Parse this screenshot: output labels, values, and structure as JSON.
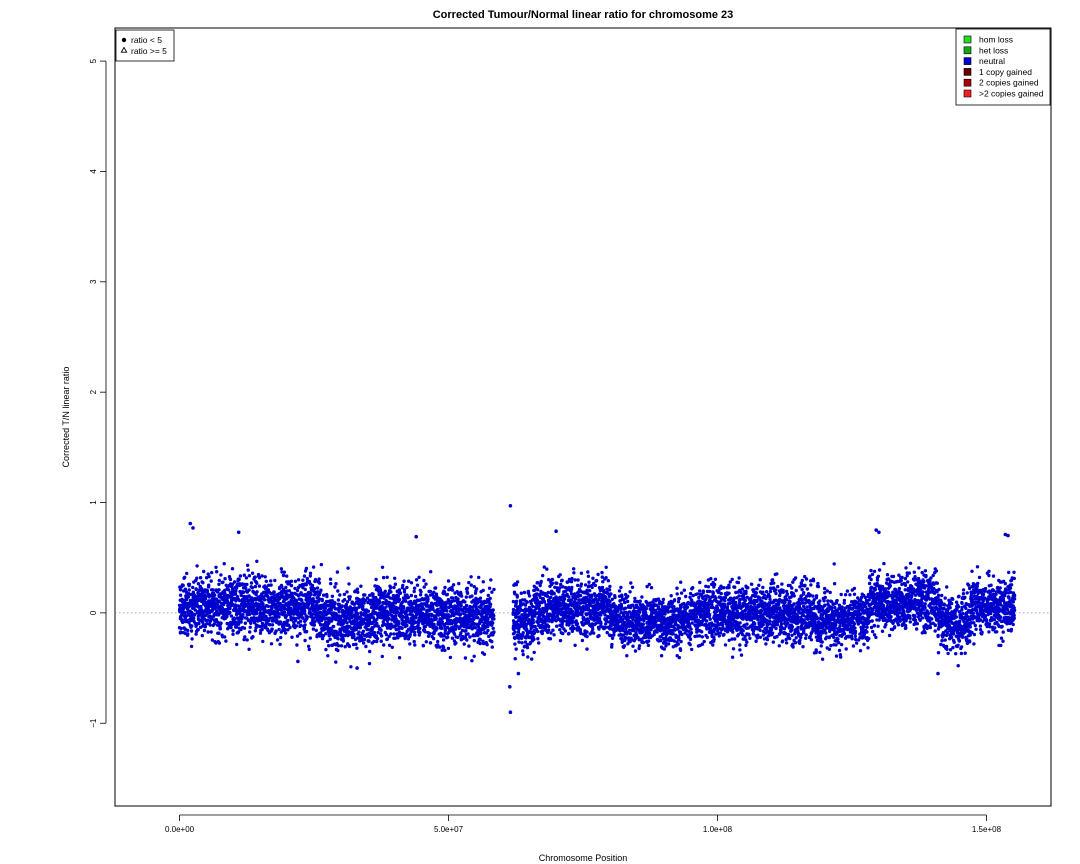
{
  "chart_data": {
    "type": "scatter",
    "title": "Corrected Tumour/Normal linear ratio for chromosome  23",
    "xlabel": "Chromosome Position",
    "ylabel": "Corrected T/N linear ratio",
    "xlim": [
      -12000000,
      162000000
    ],
    "ylim": [
      -1.75,
      5.3
    ],
    "x_ticks": [
      {
        "value": 0,
        "label": "0.0e+00"
      },
      {
        "value": 50000000,
        "label": "5.0e+07"
      },
      {
        "value": 100000000,
        "label": "1.0e+08"
      },
      {
        "value": 150000000,
        "label": "1.5e+08"
      }
    ],
    "y_ticks": [
      {
        "value": -1,
        "label": "−1"
      },
      {
        "value": 0,
        "label": "0"
      },
      {
        "value": 1,
        "label": "1"
      },
      {
        "value": 2,
        "label": "2"
      },
      {
        "value": 3,
        "label": "3"
      },
      {
        "value": 4,
        "label": "4"
      },
      {
        "value": 5,
        "label": "5"
      }
    ],
    "reference_line": {
      "y": 0,
      "style": "dotted",
      "color": "#888888"
    },
    "point_color": "#0000cc",
    "shape_legend": {
      "position": "top-left",
      "items": [
        {
          "label": "ratio < 5",
          "symbol": "filled-circle"
        },
        {
          "label": "ratio >= 5",
          "symbol": "open-triangle"
        }
      ]
    },
    "color_legend": {
      "position": "top-right",
      "items": [
        {
          "label": "hom loss",
          "color": "#22dd22"
        },
        {
          "label": "het loss",
          "color": "#11aa11"
        },
        {
          "label": "neutral",
          "color": "#0000cc"
        },
        {
          "label": "1 copy gained",
          "color": "#660000"
        },
        {
          "label": "2 copies gained",
          "color": "#aa0000"
        },
        {
          "label": ">2 copies gained",
          "color": "#ee2222"
        }
      ]
    },
    "segments": [
      {
        "series": "neutral",
        "x_start": 0,
        "x_end": 2500000,
        "center": 0.02,
        "spread": 0.13
      },
      {
        "series": "neutral",
        "x_start": 2500000,
        "x_end": 26000000,
        "center": 0.06,
        "spread": 0.13
      },
      {
        "series": "neutral",
        "x_start": 26000000,
        "x_end": 36000000,
        "center": -0.06,
        "spread": 0.13
      },
      {
        "series": "neutral",
        "x_start": 36000000,
        "x_end": 48000000,
        "center": 0.0,
        "spread": 0.13
      },
      {
        "series": "neutral",
        "x_start": 48000000,
        "x_end": 58500000,
        "center": -0.04,
        "spread": 0.13
      },
      {
        "series": "neutral",
        "x_start": 62000000,
        "x_end": 66000000,
        "center": -0.06,
        "spread": 0.14
      },
      {
        "series": "neutral",
        "x_start": 66000000,
        "x_end": 80000000,
        "center": 0.05,
        "spread": 0.13
      },
      {
        "series": "neutral",
        "x_start": 80000000,
        "x_end": 95000000,
        "center": -0.07,
        "spread": 0.12
      },
      {
        "series": "neutral",
        "x_start": 95000000,
        "x_end": 118000000,
        "center": 0.0,
        "spread": 0.13
      },
      {
        "series": "neutral",
        "x_start": 118000000,
        "x_end": 128000000,
        "center": -0.07,
        "spread": 0.12
      },
      {
        "series": "neutral",
        "x_start": 128000000,
        "x_end": 141000000,
        "center": 0.1,
        "spread": 0.13
      },
      {
        "series": "neutral",
        "x_start": 141000000,
        "x_end": 147000000,
        "center": -0.08,
        "spread": 0.12
      },
      {
        "series": "neutral",
        "x_start": 147000000,
        "x_end": 155300000,
        "center": 0.05,
        "spread": 0.13
      }
    ],
    "highlight_points": [
      {
        "x": 2000000,
        "y": 0.81
      },
      {
        "x": 2500000,
        "y": 0.77
      },
      {
        "x": 11000000,
        "y": 0.73
      },
      {
        "x": 61500000,
        "y": 0.97
      },
      {
        "x": 61500000,
        "y": -0.9
      },
      {
        "x": 61400000,
        "y": -0.67
      },
      {
        "x": 70000000,
        "y": 0.74
      },
      {
        "x": 44000000,
        "y": 0.69
      },
      {
        "x": 129500000,
        "y": 0.75
      },
      {
        "x": 130000000,
        "y": 0.73
      },
      {
        "x": 153500000,
        "y": 0.71
      },
      {
        "x": 154000000,
        "y": 0.7
      },
      {
        "x": 141000000,
        "y": -0.55
      },
      {
        "x": 63000000,
        "y": -0.55
      },
      {
        "x": 33000000,
        "y": -0.5
      },
      {
        "x": 22000000,
        "y": -0.44
      }
    ]
  }
}
